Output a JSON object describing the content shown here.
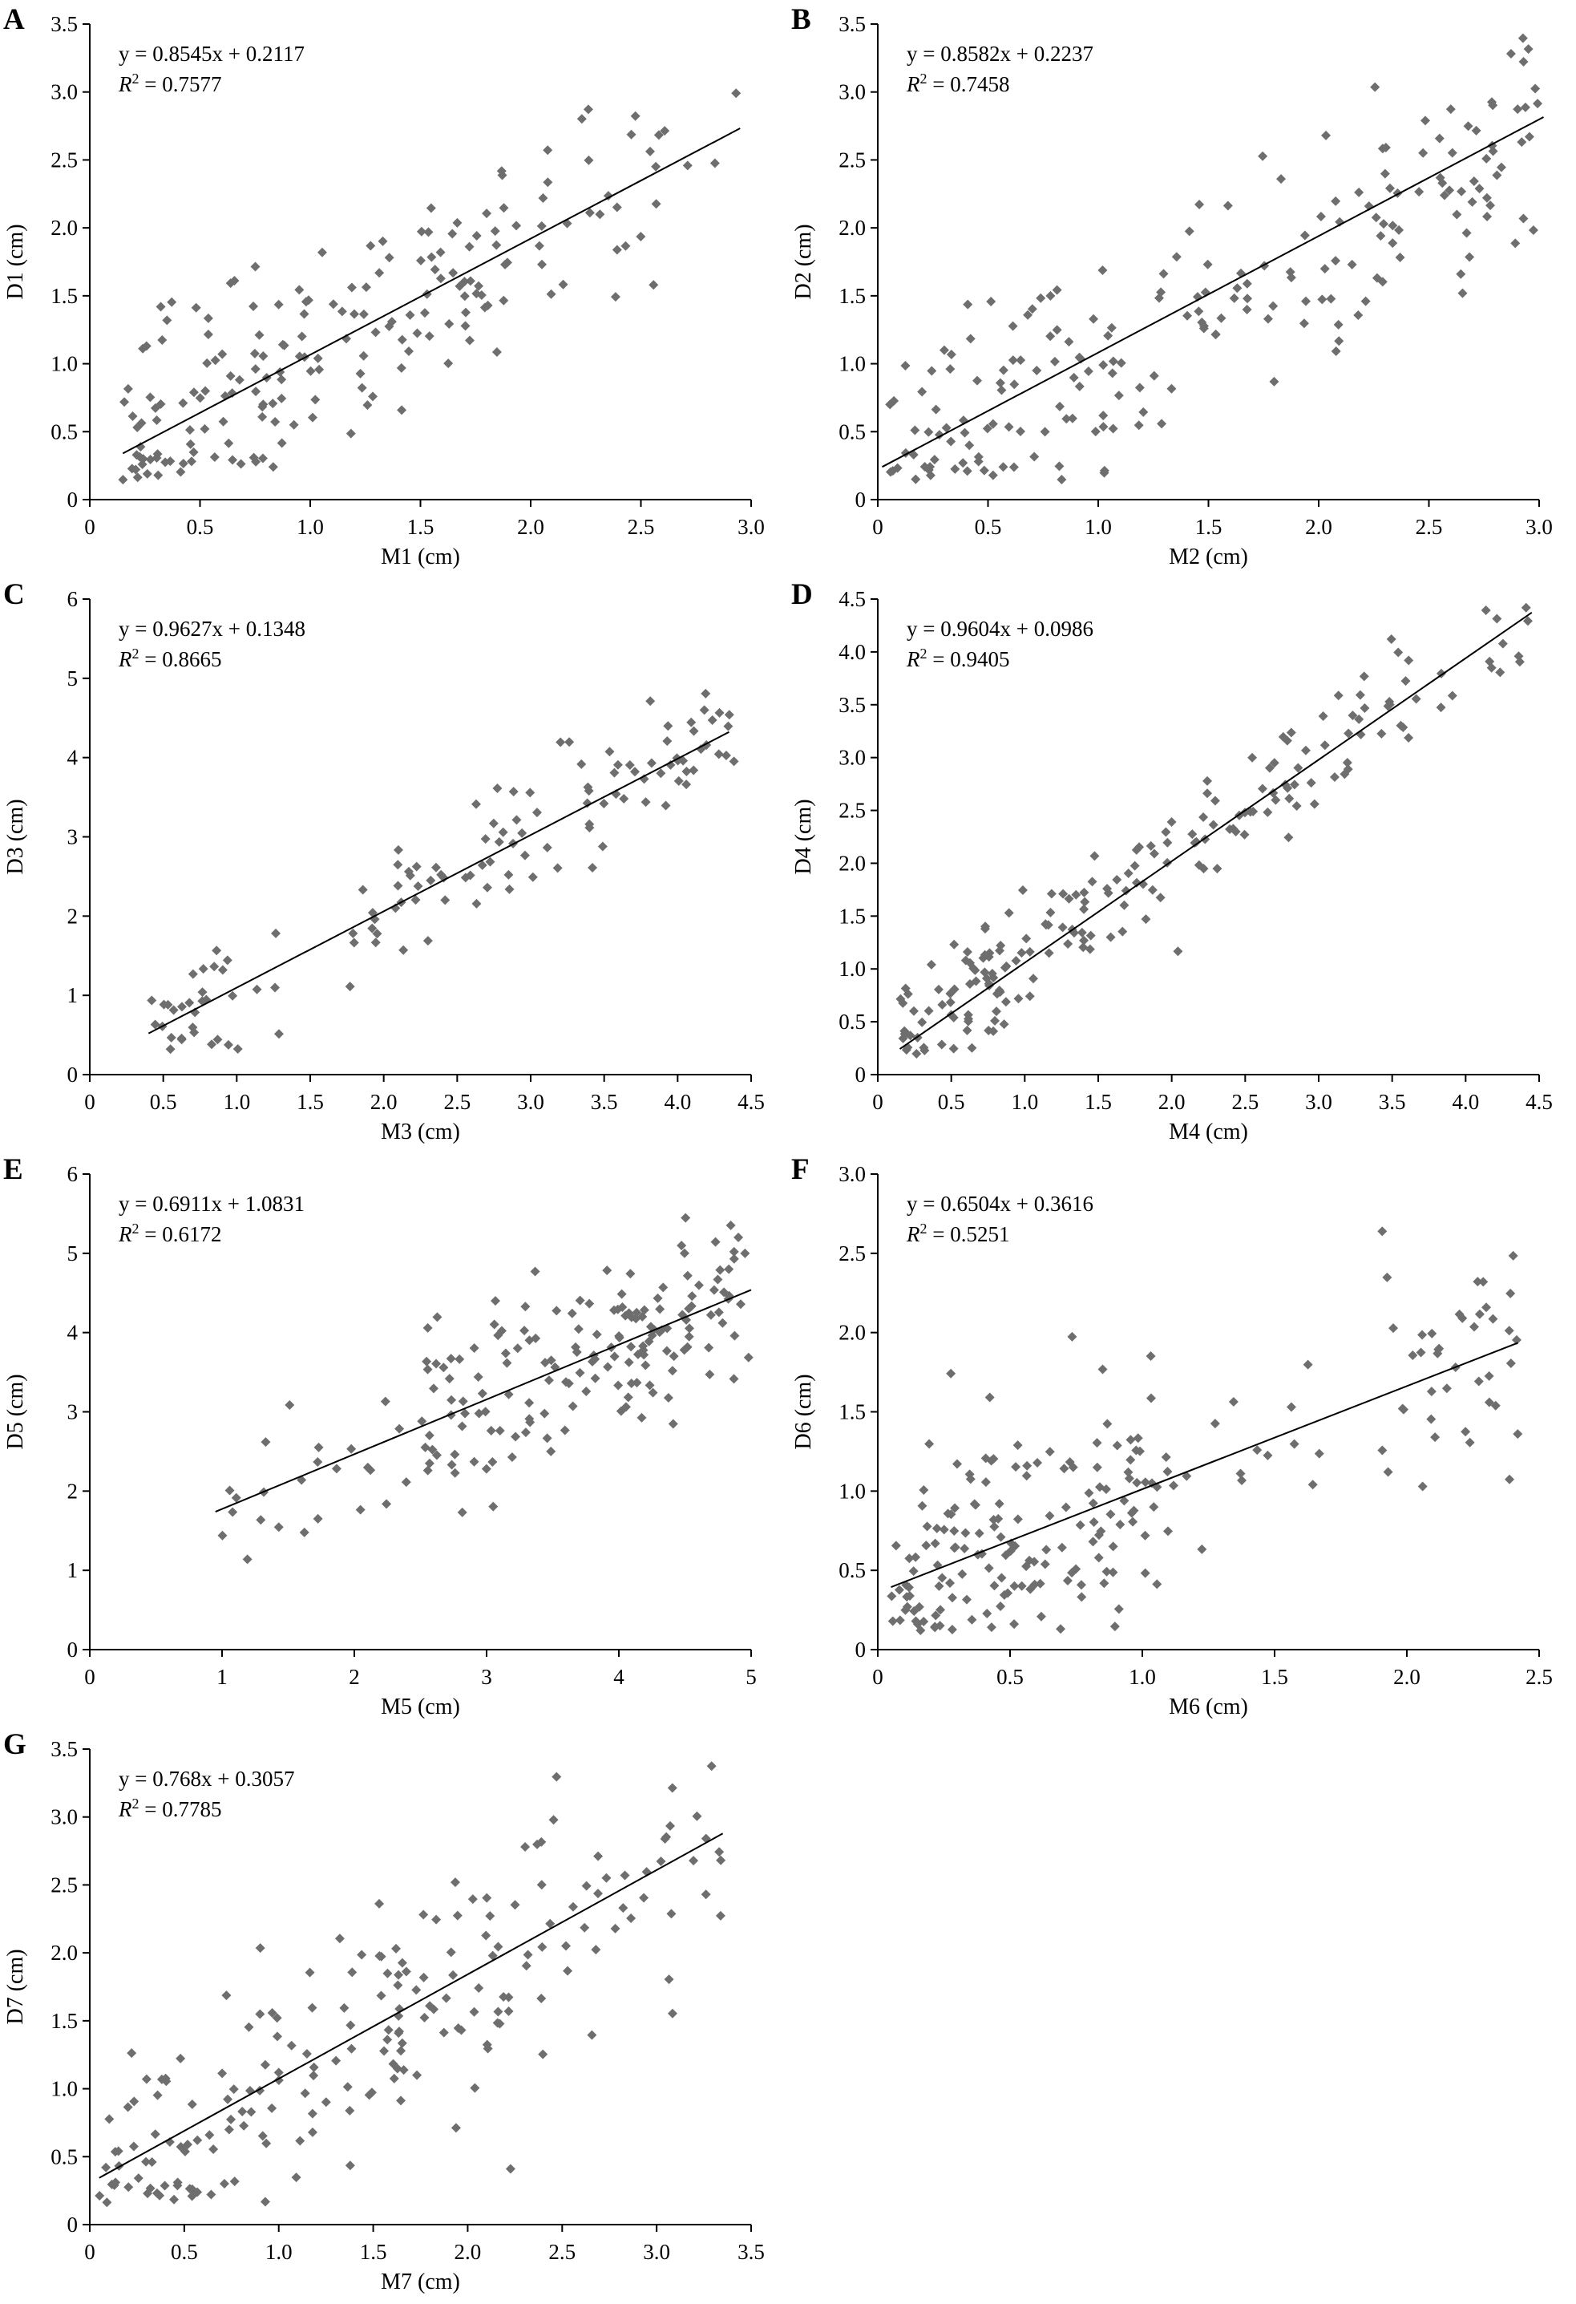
{
  "figure": {
    "background": "#ffffff",
    "gridlines": false,
    "legend": "none",
    "marker_shape": "diamond"
  },
  "style": {
    "point_color": "#6e6e6e",
    "line_color": "#000000",
    "axis_color": "#000000",
    "text_color": "#000000"
  },
  "chart_data": [
    {
      "panel": "A",
      "type": "scatter",
      "equation": "y = 0.8545x + 0.2117",
      "r2_prefix": "R",
      "r2_sup": "2",
      "r2_value": "0.7577",
      "slope": 0.8545,
      "intercept": 0.2117,
      "xlabel": "M1 (cm)",
      "ylabel": "D1 (cm)",
      "xlim": [
        0,
        3.0
      ],
      "ylim": [
        0,
        3.5
      ],
      "xstep": 0.5,
      "ystep": 0.5,
      "xdec": 1,
      "ydec": 1,
      "line_x": [
        0.15,
        2.95
      ],
      "scatter": {
        "n": 195,
        "seed": 11,
        "noise_sd": 0.37,
        "x_segments": [
          [
            0.15,
            1.1,
            0.45
          ],
          [
            1.1,
            2.1,
            0.4
          ],
          [
            2.1,
            2.95,
            0.15
          ]
        ]
      }
    },
    {
      "panel": "B",
      "type": "scatter",
      "equation": "y = 0.8582x + 0.2237",
      "r2_prefix": "R",
      "r2_sup": "2",
      "r2_value": "0.7458",
      "slope": 0.8582,
      "intercept": 0.2237,
      "xlabel": "M2 (cm)",
      "ylabel": "D2 (cm)",
      "xlim": [
        0,
        3.0
      ],
      "ylim": [
        0,
        3.5
      ],
      "xstep": 0.5,
      "ystep": 0.5,
      "xdec": 1,
      "ydec": 1,
      "line_x": [
        0.02,
        3.02
      ],
      "scatter": {
        "n": 205,
        "seed": 22,
        "noise_sd": 0.42,
        "x_segments": [
          [
            0.05,
            1.0,
            0.35
          ],
          [
            1.0,
            2.2,
            0.4
          ],
          [
            2.2,
            3.02,
            0.25
          ]
        ]
      }
    },
    {
      "panel": "C",
      "type": "scatter",
      "equation": "y = 0.9627x + 0.1348",
      "r2_prefix": "R",
      "r2_sup": "2",
      "r2_value": "0.8665",
      "slope": 0.9627,
      "intercept": 0.1348,
      "xlabel": "M3 (cm)",
      "ylabel": "D3 (cm)",
      "xlim": [
        0,
        4.5
      ],
      "ylim": [
        0,
        6
      ],
      "xstep": 0.5,
      "ystep": 1,
      "xdec": 1,
      "ydec": 0,
      "line_x": [
        0.4,
        4.35
      ],
      "scatter": {
        "n": 130,
        "seed": 33,
        "noise_sd": 0.4,
        "x_segments": [
          [
            0.4,
            1.3,
            0.3
          ],
          [
            1.75,
            3.1,
            0.35
          ],
          [
            3.1,
            4.4,
            0.35
          ]
        ]
      }
    },
    {
      "panel": "D",
      "type": "scatter",
      "equation": "y = 0.9604x + 0.0986",
      "r2_prefix": "R",
      "r2_sup": "2",
      "r2_value": "0.9405",
      "slope": 0.9604,
      "intercept": 0.0986,
      "xlabel": "M4 (cm)",
      "ylabel": "D4 (cm)",
      "xlim": [
        0,
        4.5
      ],
      "ylim": [
        0,
        4.5
      ],
      "xstep": 0.5,
      "ystep": 0.5,
      "xdec": 1,
      "ydec": 1,
      "line_x": [
        0.15,
        4.45
      ],
      "scatter": {
        "n": 200,
        "seed": 44,
        "noise_sd": 0.28,
        "x_segments": [
          [
            0.15,
            0.9,
            0.35
          ],
          [
            0.9,
            2.0,
            0.25
          ],
          [
            2.0,
            3.0,
            0.2
          ],
          [
            3.0,
            4.45,
            0.2
          ]
        ]
      }
    },
    {
      "panel": "E",
      "type": "scatter",
      "equation": "y = 0.6911x + 1.0831",
      "r2_prefix": "R",
      "r2_sup": "2",
      "r2_value": "0.6172",
      "slope": 0.6911,
      "intercept": 1.0831,
      "xlabel": "M5 (cm)",
      "ylabel": "D5 (cm)",
      "xlim": [
        0,
        5
      ],
      "ylim": [
        0,
        6
      ],
      "xstep": 1,
      "ystep": 1,
      "xdec": 0,
      "ydec": 0,
      "line_x": [
        0.95,
        5.0
      ],
      "scatter": {
        "n": 190,
        "seed": 55,
        "noise_sd": 0.58,
        "x_segments": [
          [
            0.95,
            2.5,
            0.12
          ],
          [
            2.5,
            4.0,
            0.5
          ],
          [
            4.0,
            5.0,
            0.38
          ]
        ]
      }
    },
    {
      "panel": "F",
      "type": "scatter",
      "equation": "y = 0.6504x + 0.3616",
      "r2_prefix": "R",
      "r2_sup": "2",
      "r2_value": "0.5251",
      "slope": 0.6504,
      "intercept": 0.3616,
      "xlabel": "M6 (cm)",
      "ylabel": "D6 (cm)",
      "xlim": [
        0,
        2.5
      ],
      "ylim": [
        0,
        3.0
      ],
      "xstep": 0.5,
      "ystep": 0.5,
      "xdec": 1,
      "ydec": 1,
      "line_x": [
        0.05,
        2.42
      ],
      "scatter": {
        "n": 215,
        "seed": 66,
        "noise_sd": 0.33,
        "x_segments": [
          [
            0.05,
            0.6,
            0.45
          ],
          [
            0.6,
            1.1,
            0.3
          ],
          [
            1.1,
            1.7,
            0.1
          ],
          [
            1.9,
            2.42,
            0.15
          ]
        ]
      }
    },
    {
      "panel": "G",
      "type": "scatter",
      "equation": "y = 0.768x + 0.3057",
      "r2_prefix": "R",
      "r2_sup": "2",
      "r2_value": "0.7785",
      "slope": 0.768,
      "intercept": 0.3057,
      "xlabel": "M7 (cm)",
      "ylabel": "D7 (cm)",
      "xlim": [
        0,
        3.5
      ],
      "ylim": [
        0,
        3.5
      ],
      "xstep": 0.5,
      "ystep": 0.5,
      "xdec": 1,
      "ydec": 1,
      "line_x": [
        0.05,
        3.35
      ],
      "scatter": {
        "n": 200,
        "seed": 77,
        "noise_sd": 0.43,
        "x_segments": [
          [
            0.05,
            1.2,
            0.4
          ],
          [
            1.2,
            2.4,
            0.42
          ],
          [
            2.4,
            3.35,
            0.18
          ]
        ]
      }
    }
  ]
}
